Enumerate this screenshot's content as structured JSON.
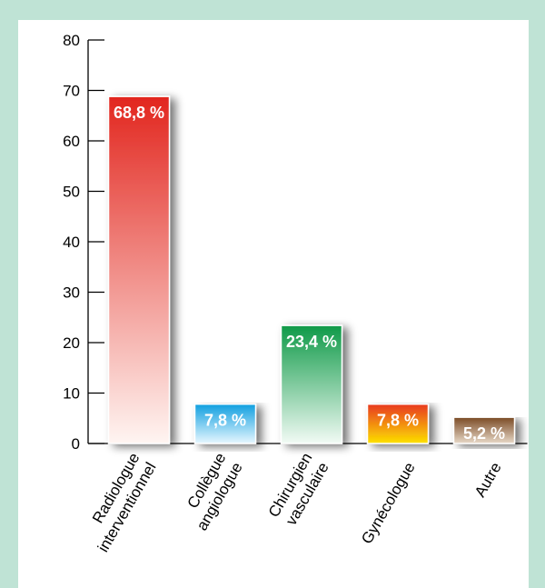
{
  "chart_data": {
    "type": "bar",
    "categories": [
      [
        "Radiologue",
        "interventionnel"
      ],
      [
        "Collègue",
        "angiologue"
      ],
      [
        "Chirurgien",
        "vasculaire"
      ],
      [
        "Gynécologue"
      ],
      [
        "Autre"
      ]
    ],
    "values": [
      68.8,
      7.8,
      23.4,
      7.8,
      5.2
    ],
    "value_labels": [
      "68,8 %",
      "7,8 %",
      "23,4 %",
      "7,8 %",
      "5,2 %"
    ],
    "yticks": [
      "0",
      "10",
      "20",
      "30",
      "40",
      "50",
      "60",
      "70",
      "80"
    ],
    "ylim": [
      0,
      80
    ],
    "title": "",
    "xlabel": "",
    "ylabel": "",
    "grid": false,
    "colors": {
      "bars": [
        [
          "#e2261e",
          "#fff5f2"
        ],
        [
          "#0f9fe0",
          "#e8f7ff"
        ],
        [
          "#0f9a48",
          "#f2fbf5"
        ],
        [
          "#e83820",
          "#fde200"
        ],
        [
          "#7a4a24",
          "#e8d9c8"
        ]
      ],
      "frame": "#bfe3d5"
    }
  }
}
